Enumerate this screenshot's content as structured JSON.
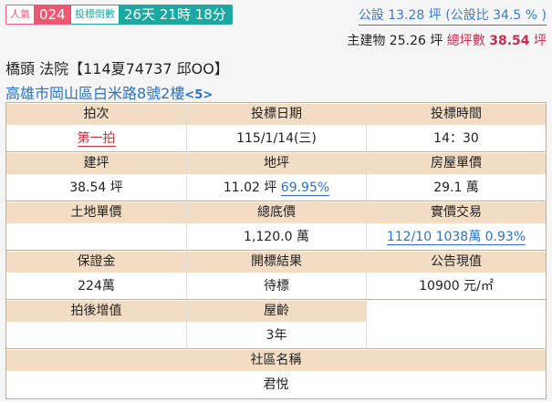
{
  "badges": {
    "popularity_label": "人氣",
    "popularity_value": "024",
    "countdown_label": "投標倒數",
    "countdown_value": "26天 21時 18分"
  },
  "area": {
    "public": "公設 13.28 坪 (公設比 34.5 % )",
    "main_building": "主建物 25.26 坪",
    "total_label": "總坪數",
    "total_value": "38.54",
    "unit": "坪"
  },
  "title": "橋頭 法院【114夏74737 邱OO】",
  "address": "高雄市岡山區白米路8號2樓",
  "address_suffix": "<5>",
  "table": {
    "auction_round_h": "拍次",
    "auction_round": "第一拍",
    "bid_date_h": "投標日期",
    "bid_date": "115/1/14(三)",
    "bid_time_h": "投標時間",
    "bid_time": "14：30",
    "building_area_h": "建坪",
    "building_area": "38.54 坪",
    "land_area_h": "地坪",
    "land_area": "11.02 坪",
    "land_ratio": "69.95%",
    "house_unit_price_h": "房屋單價",
    "house_unit_price": "29.1 萬",
    "land_unit_price_h": "土地單價",
    "land_unit_price": "",
    "reserve_price_h": "總底價",
    "reserve_price": "1,120.0 萬",
    "actual_trade_h": "實價交易",
    "actual_trade": "112/10 1038萬 0.93%",
    "deposit_h": "保證金",
    "deposit": "224萬",
    "result_h": "開標結果",
    "result": "待標",
    "announced_value_h": "公告現值",
    "announced_value": "10900 元/㎡",
    "appreciation_h": "拍後增值",
    "appreciation": "",
    "age_h": "屋齡",
    "age": "3年",
    "community_h": "社區名稱",
    "community": "君悅"
  }
}
